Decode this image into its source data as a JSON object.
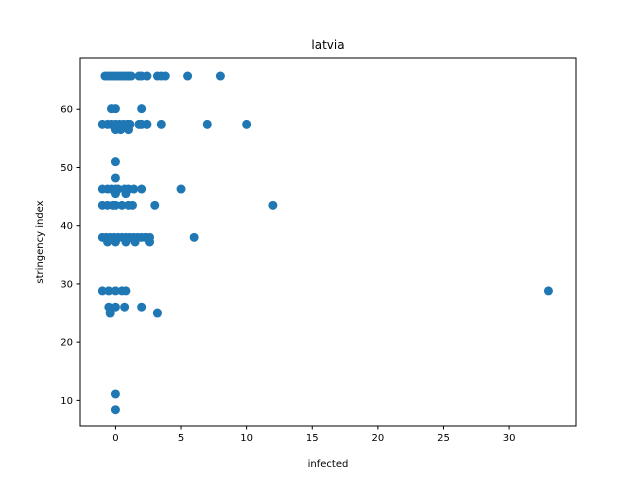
{
  "chart_data": {
    "type": "scatter",
    "title": "latvia",
    "xlabel": "infected",
    "ylabel": "stringency index",
    "xlim": [
      -2.7,
      35.1
    ],
    "ylim": [
      5.6,
      68.8
    ],
    "xticks": [
      0,
      5,
      10,
      15,
      20,
      25,
      30
    ],
    "yticks": [
      10,
      20,
      30,
      40,
      50,
      60
    ],
    "grid": false,
    "marker_color": "#1f77b4",
    "series": [
      {
        "points": [
          [
            -0.8,
            65.7
          ],
          [
            -0.6,
            65.7
          ],
          [
            -0.4,
            65.7
          ],
          [
            -0.2,
            65.7
          ],
          [
            0.0,
            65.7
          ],
          [
            0.2,
            65.7
          ],
          [
            0.4,
            65.7
          ],
          [
            0.6,
            65.7
          ],
          [
            0.8,
            65.7
          ],
          [
            1.0,
            65.7
          ],
          [
            1.2,
            65.7
          ],
          [
            1.8,
            65.7
          ],
          [
            2.0,
            65.7
          ],
          [
            2.4,
            65.7
          ],
          [
            3.2,
            65.7
          ],
          [
            3.5,
            65.7
          ],
          [
            3.8,
            65.7
          ],
          [
            5.5,
            65.7
          ],
          [
            8.0,
            65.7
          ],
          [
            -0.3,
            60.1
          ],
          [
            0.0,
            60.1
          ],
          [
            2.0,
            60.1
          ],
          [
            -1.0,
            57.4
          ],
          [
            -0.6,
            57.4
          ],
          [
            -0.3,
            57.4
          ],
          [
            0.0,
            57.4
          ],
          [
            0.3,
            57.4
          ],
          [
            0.6,
            57.4
          ],
          [
            0.9,
            57.4
          ],
          [
            1.1,
            57.4
          ],
          [
            1.8,
            57.4
          ],
          [
            2.0,
            57.4
          ],
          [
            2.4,
            57.4
          ],
          [
            3.5,
            57.4
          ],
          [
            7.0,
            57.4
          ],
          [
            10.0,
            57.4
          ],
          [
            0.0,
            56.5
          ],
          [
            0.4,
            56.5
          ],
          [
            1.0,
            56.5
          ],
          [
            0.0,
            51.0
          ],
          [
            0.0,
            48.2
          ],
          [
            -1.0,
            46.3
          ],
          [
            -0.6,
            46.3
          ],
          [
            -0.3,
            46.3
          ],
          [
            0.0,
            46.3
          ],
          [
            0.2,
            46.3
          ],
          [
            0.7,
            46.3
          ],
          [
            1.0,
            46.3
          ],
          [
            1.4,
            46.3
          ],
          [
            2.0,
            46.3
          ],
          [
            5.0,
            46.3
          ],
          [
            0.0,
            45.5
          ],
          [
            0.8,
            45.5
          ],
          [
            -1.0,
            43.5
          ],
          [
            -0.6,
            43.5
          ],
          [
            -0.2,
            43.5
          ],
          [
            0.0,
            43.5
          ],
          [
            0.5,
            43.5
          ],
          [
            1.0,
            43.5
          ],
          [
            1.3,
            43.5
          ],
          [
            3.0,
            43.5
          ],
          [
            12.0,
            43.5
          ],
          [
            -1.0,
            38.0
          ],
          [
            -0.7,
            38.0
          ],
          [
            -0.4,
            38.0
          ],
          [
            -0.1,
            38.0
          ],
          [
            0.2,
            38.0
          ],
          [
            0.5,
            38.0
          ],
          [
            0.8,
            38.0
          ],
          [
            1.1,
            38.0
          ],
          [
            1.4,
            38.0
          ],
          [
            1.7,
            38.0
          ],
          [
            2.0,
            38.0
          ],
          [
            2.3,
            38.0
          ],
          [
            2.6,
            38.0
          ],
          [
            6.0,
            38.0
          ],
          [
            -0.6,
            37.2
          ],
          [
            0.0,
            37.2
          ],
          [
            0.8,
            37.2
          ],
          [
            1.5,
            37.2
          ],
          [
            2.6,
            37.2
          ],
          [
            -1.0,
            28.8
          ],
          [
            -0.5,
            28.8
          ],
          [
            0.0,
            28.8
          ],
          [
            0.5,
            28.8
          ],
          [
            0.8,
            28.8
          ],
          [
            33.0,
            28.8
          ],
          [
            -0.5,
            26.0
          ],
          [
            0.0,
            26.0
          ],
          [
            0.7,
            26.0
          ],
          [
            2.0,
            26.0
          ],
          [
            -0.4,
            25.0
          ],
          [
            3.2,
            25.0
          ],
          [
            0.0,
            11.1
          ],
          [
            0.0,
            8.4
          ]
        ]
      }
    ]
  }
}
